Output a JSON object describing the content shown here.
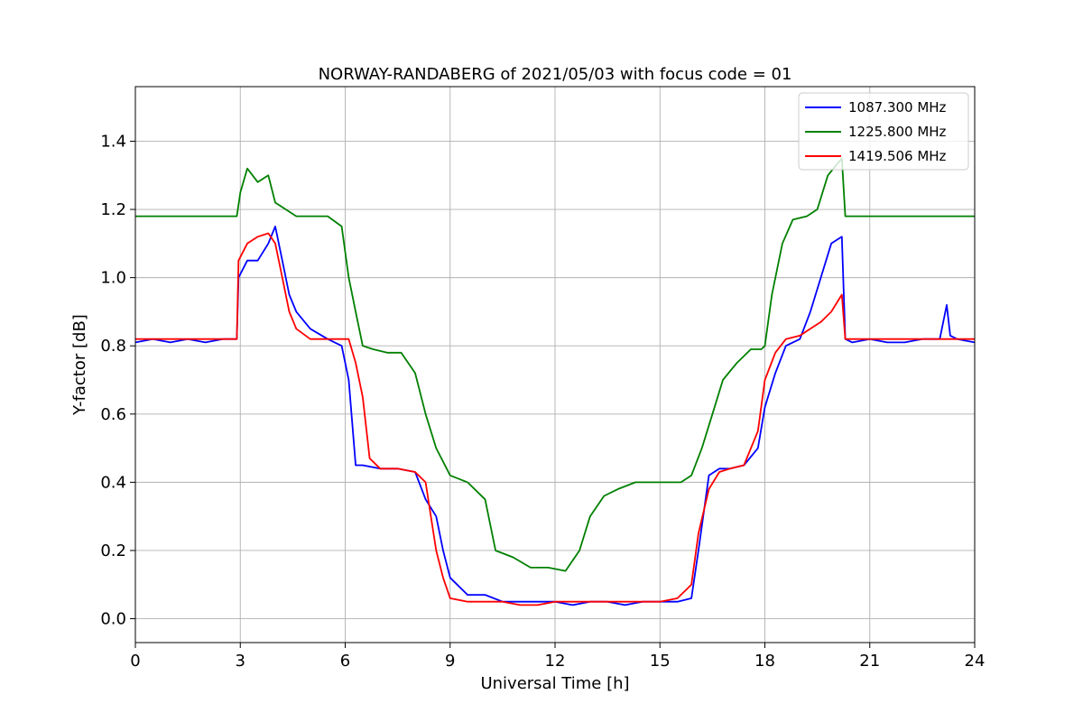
{
  "chart_data": {
    "type": "line",
    "title": "NORWAY-RANDABERG of 2021/05/03 with focus code = 01",
    "xlabel": "Universal Time [h]",
    "ylabel": "Y-factor [dB]",
    "xlim": [
      0,
      24
    ],
    "ylim": [
      -0.07,
      1.56
    ],
    "xticks": [
      0,
      3,
      6,
      9,
      12,
      15,
      18,
      21,
      24
    ],
    "yticks": [
      0.0,
      0.2,
      0.4,
      0.6,
      0.8,
      1.0,
      1.2,
      1.4
    ],
    "ytick_labels": [
      "0.0",
      "0.2",
      "0.4",
      "0.6",
      "0.8",
      "1.0",
      "1.2",
      "1.4"
    ],
    "grid": true,
    "legend_position": "top-right",
    "series": [
      {
        "name": "1087.300 MHz",
        "color": "#0000ff",
        "x": [
          0,
          0.5,
          1,
          1.5,
          2,
          2.5,
          2.9,
          2.95,
          3.2,
          3.5,
          3.8,
          4.0,
          4.2,
          4.4,
          4.6,
          5.0,
          5.5,
          5.9,
          6.1,
          6.3,
          6.5,
          7.0,
          7.5,
          8.0,
          8.3,
          8.6,
          8.8,
          9.0,
          9.5,
          10.0,
          10.5,
          11.0,
          11.5,
          12.0,
          12.5,
          13.0,
          13.5,
          14.0,
          14.5,
          15.0,
          15.5,
          15.9,
          16.1,
          16.4,
          16.7,
          17.0,
          17.4,
          17.8,
          18.0,
          18.3,
          18.6,
          19.0,
          19.3,
          19.6,
          19.9,
          20.2,
          20.3,
          20.5,
          21.0,
          21.5,
          22.0,
          22.5,
          23.0,
          23.2,
          23.3,
          23.5,
          24
        ],
        "y": [
          0.81,
          0.82,
          0.81,
          0.82,
          0.81,
          0.82,
          0.82,
          1.0,
          1.05,
          1.05,
          1.1,
          1.15,
          1.05,
          0.95,
          0.9,
          0.85,
          0.82,
          0.8,
          0.7,
          0.45,
          0.45,
          0.44,
          0.44,
          0.43,
          0.35,
          0.3,
          0.2,
          0.12,
          0.07,
          0.07,
          0.05,
          0.05,
          0.05,
          0.05,
          0.04,
          0.05,
          0.05,
          0.04,
          0.05,
          0.05,
          0.05,
          0.06,
          0.2,
          0.42,
          0.44,
          0.44,
          0.45,
          0.5,
          0.62,
          0.72,
          0.8,
          0.82,
          0.9,
          1.0,
          1.1,
          1.12,
          0.82,
          0.81,
          0.82,
          0.81,
          0.81,
          0.82,
          0.82,
          0.92,
          0.83,
          0.82,
          0.81
        ]
      },
      {
        "name": "1225.800 MHz",
        "color": "#008000",
        "x": [
          0,
          0.5,
          1,
          1.5,
          2,
          2.5,
          2.9,
          3.0,
          3.2,
          3.5,
          3.8,
          4.0,
          4.3,
          4.6,
          5.0,
          5.5,
          5.9,
          6.1,
          6.3,
          6.5,
          6.8,
          7.2,
          7.6,
          8.0,
          8.3,
          8.6,
          9.0,
          9.5,
          10.0,
          10.3,
          10.8,
          11.3,
          11.8,
          12.3,
          12.7,
          13.0,
          13.4,
          13.8,
          14.3,
          14.8,
          15.3,
          15.6,
          15.9,
          16.2,
          16.5,
          16.8,
          17.2,
          17.6,
          17.9,
          18.0,
          18.2,
          18.5,
          18.8,
          19.2,
          19.5,
          19.8,
          20.2,
          20.3,
          20.6,
          21.0,
          21.5,
          22.0,
          22.5,
          23.0,
          23.5,
          24
        ],
        "y": [
          1.18,
          1.18,
          1.18,
          1.18,
          1.18,
          1.18,
          1.18,
          1.25,
          1.32,
          1.28,
          1.3,
          1.22,
          1.2,
          1.18,
          1.18,
          1.18,
          1.15,
          1.0,
          0.9,
          0.8,
          0.79,
          0.78,
          0.78,
          0.72,
          0.6,
          0.5,
          0.42,
          0.4,
          0.35,
          0.2,
          0.18,
          0.15,
          0.15,
          0.14,
          0.2,
          0.3,
          0.36,
          0.38,
          0.4,
          0.4,
          0.4,
          0.4,
          0.42,
          0.5,
          0.6,
          0.7,
          0.75,
          0.79,
          0.79,
          0.8,
          0.95,
          1.1,
          1.17,
          1.18,
          1.2,
          1.3,
          1.35,
          1.18,
          1.18,
          1.18,
          1.18,
          1.18,
          1.18,
          1.18,
          1.18,
          1.18
        ]
      },
      {
        "name": "1419.506 MHz",
        "color": "#ff0000",
        "x": [
          0,
          0.5,
          1,
          1.5,
          2,
          2.5,
          2.9,
          2.95,
          3.2,
          3.5,
          3.8,
          4.0,
          4.2,
          4.4,
          4.6,
          5.0,
          5.5,
          5.9,
          6.1,
          6.3,
          6.5,
          6.7,
          7.0,
          7.5,
          8.0,
          8.3,
          8.6,
          8.8,
          9.0,
          9.5,
          10.0,
          10.5,
          11.0,
          11.5,
          12.0,
          12.5,
          13.0,
          13.5,
          14.0,
          14.5,
          15.0,
          15.5,
          15.9,
          16.1,
          16.4,
          16.7,
          17.0,
          17.4,
          17.8,
          18.0,
          18.3,
          18.6,
          19.0,
          19.3,
          19.6,
          19.9,
          20.2,
          20.3,
          20.5,
          21.0,
          21.5,
          22.0,
          22.5,
          23.0,
          23.5,
          24
        ],
        "y": [
          0.82,
          0.82,
          0.82,
          0.82,
          0.82,
          0.82,
          0.82,
          1.05,
          1.1,
          1.12,
          1.13,
          1.1,
          1.0,
          0.9,
          0.85,
          0.82,
          0.82,
          0.82,
          0.82,
          0.75,
          0.65,
          0.47,
          0.44,
          0.44,
          0.43,
          0.4,
          0.2,
          0.12,
          0.06,
          0.05,
          0.05,
          0.05,
          0.04,
          0.04,
          0.05,
          0.05,
          0.05,
          0.05,
          0.05,
          0.05,
          0.05,
          0.06,
          0.1,
          0.25,
          0.38,
          0.43,
          0.44,
          0.45,
          0.55,
          0.7,
          0.78,
          0.82,
          0.83,
          0.85,
          0.87,
          0.9,
          0.95,
          0.82,
          0.82,
          0.82,
          0.82,
          0.82,
          0.82,
          0.82,
          0.82,
          0.82
        ]
      }
    ]
  }
}
